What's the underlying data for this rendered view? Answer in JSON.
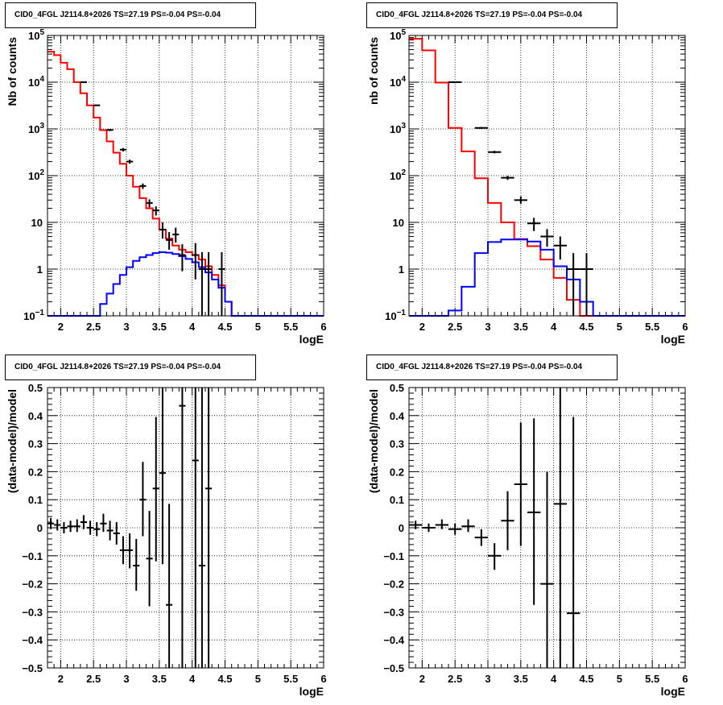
{
  "chart_data": [
    {
      "id": "p1",
      "type": "line",
      "title": "CID0_4FGL J2114.8+2026 TS=27.19 PS=-0.04 PS=-0.04",
      "xlabel": "logE",
      "ylabel": "Nb of counts",
      "xlim": [
        1.8,
        6.0
      ],
      "ylim": [
        0.1,
        100000
      ],
      "yscale": "log",
      "grid": true,
      "colors": {
        "total": "#ff0000",
        "source": "#0000ff",
        "data": "#000000"
      },
      "x_ticks": [
        "2",
        "2.5",
        "3",
        "3.5",
        "4",
        "4.5",
        "5",
        "5.5",
        "6"
      ],
      "x_tick_values": [
        2,
        2.5,
        3,
        3.5,
        4,
        4.5,
        5,
        5.5,
        6
      ],
      "y_ticks": [
        {
          "value": 0.1,
          "base": "10",
          "exp": "−1"
        },
        {
          "value": 1,
          "base": "1",
          "exp": ""
        },
        {
          "value": 10,
          "base": "10",
          "exp": ""
        },
        {
          "value": 100,
          "base": "10",
          "exp": "2"
        },
        {
          "value": 1000,
          "base": "10",
          "exp": "3"
        },
        {
          "value": 10000,
          "base": "10",
          "exp": "4"
        },
        {
          "value": 100000,
          "base": "10",
          "exp": "5"
        }
      ],
      "bin_width": 0.1,
      "bin_edges_start": 1.8,
      "series": [
        {
          "role": "total",
          "values": [
            45000,
            38000,
            26000,
            19000,
            10000,
            5800,
            3200,
            1750,
            940,
            540,
            310,
            180,
            100,
            58,
            33,
            20,
            12,
            7,
            4.5,
            3.2,
            2.6,
            2.3,
            2.0,
            1.6,
            1.15,
            0.75,
            0.45,
            0.2,
            0.1,
            0.1,
            0.1,
            0.1,
            0.1,
            0.1,
            0.1,
            0.1,
            0.1,
            0.1,
            0.1,
            0.1,
            0.1,
            0.1
          ]
        },
        {
          "role": "source",
          "values": [
            0.1,
            0.1,
            0.1,
            0.1,
            0.1,
            0.1,
            0.1,
            0.1,
            0.18,
            0.3,
            0.48,
            0.75,
            1.1,
            1.5,
            1.8,
            2.0,
            2.2,
            2.3,
            2.25,
            2.1,
            1.9,
            1.65,
            1.4,
            1.1,
            0.85,
            0.6,
            0.4,
            0.2,
            0.1,
            0.1,
            0.1,
            0.1,
            0.1,
            0.1,
            0.1,
            0.1,
            0.1,
            0.1,
            0.1,
            0.1,
            0.1,
            0.1
          ]
        }
      ],
      "points": [
        {
          "x": 2.35,
          "y": 10000,
          "lo": 9800,
          "hi": 10200
        },
        {
          "x": 2.55,
          "y": 3200,
          "lo": 3100,
          "hi": 3300
        },
        {
          "x": 2.75,
          "y": 950,
          "lo": 900,
          "hi": 1000
        },
        {
          "x": 2.95,
          "y": 360,
          "lo": 330,
          "hi": 390
        },
        {
          "x": 3.05,
          "y": 200,
          "lo": 180,
          "hi": 220
        },
        {
          "x": 3.25,
          "y": 60,
          "lo": 52,
          "hi": 68
        },
        {
          "x": 3.35,
          "y": 26,
          "lo": 21,
          "hi": 31
        },
        {
          "x": 3.45,
          "y": 18,
          "lo": 14,
          "hi": 22
        },
        {
          "x": 3.55,
          "y": 7,
          "lo": 4.5,
          "hi": 10
        },
        {
          "x": 3.65,
          "y": 4.2,
          "lo": 2.6,
          "hi": 6.2
        },
        {
          "x": 3.75,
          "y": 5.5,
          "lo": 3.7,
          "hi": 7.7
        },
        {
          "x": 3.85,
          "y": 2,
          "lo": 0.9,
          "hi": 3.4
        },
        {
          "x": 4.05,
          "y": 2,
          "lo": 0.6,
          "hi": 3.6
        },
        {
          "x": 4.15,
          "y": 1,
          "lo": 0.1,
          "hi": 2.3
        },
        {
          "x": 4.25,
          "y": 1,
          "lo": 0.1,
          "hi": 2.3
        },
        {
          "x": 4.45,
          "y": 1,
          "lo": 0.1,
          "hi": 2.3
        }
      ]
    },
    {
      "id": "p2",
      "type": "line",
      "title": "CID0_4FGL J2114.8+2026 TS=27.19 PS=-0.04 PS=-0.04",
      "xlabel": "logE",
      "ylabel": "nb of counts",
      "xlim": [
        1.8,
        6.0
      ],
      "ylim": [
        0.1,
        100000
      ],
      "yscale": "log",
      "grid": true,
      "colors": {
        "total": "#ff0000",
        "source": "#0000ff",
        "data": "#000000"
      },
      "x_ticks": [
        "2",
        "2.5",
        "3",
        "3.5",
        "4",
        "4.5",
        "5",
        "5.5",
        "6"
      ],
      "x_tick_values": [
        2,
        2.5,
        3,
        3.5,
        4,
        4.5,
        5,
        5.5,
        6
      ],
      "y_ticks": [
        {
          "value": 0.1,
          "base": "10",
          "exp": "−1"
        },
        {
          "value": 1,
          "base": "1",
          "exp": ""
        },
        {
          "value": 10,
          "base": "10",
          "exp": ""
        },
        {
          "value": 100,
          "base": "10",
          "exp": "2"
        },
        {
          "value": 1000,
          "base": "10",
          "exp": "3"
        },
        {
          "value": 10000,
          "base": "10",
          "exp": "4"
        },
        {
          "value": 100000,
          "base": "10",
          "exp": "5"
        }
      ],
      "bin_width": 0.2,
      "bin_edges_start": 1.8,
      "series": [
        {
          "role": "total",
          "values": [
            85000,
            48000,
            9800,
            1050,
            330,
            88,
            26,
            10,
            4.4,
            3.1,
            1.6,
            0.65,
            0.22,
            0.1,
            0.1,
            0.1,
            0.1,
            0.1,
            0.1,
            0.1,
            0.1
          ]
        },
        {
          "role": "source",
          "values": [
            0.1,
            0.1,
            0.1,
            0.13,
            0.42,
            2.2,
            3.8,
            4.3,
            4.3,
            3.9,
            2.6,
            1.15,
            0.6,
            0.2,
            0.1,
            0.1,
            0.1,
            0.1,
            0.1,
            0.1,
            0.1
          ]
        }
      ],
      "points": [
        {
          "x": 2.5,
          "y": 10000,
          "lo": 9800,
          "hi": 10200
        },
        {
          "x": 2.9,
          "y": 1050,
          "lo": 1000,
          "hi": 1100
        },
        {
          "x": 3.1,
          "y": 320,
          "lo": 300,
          "hi": 340
        },
        {
          "x": 3.3,
          "y": 90,
          "lo": 81,
          "hi": 99
        },
        {
          "x": 3.5,
          "y": 30,
          "lo": 25,
          "hi": 36
        },
        {
          "x": 3.7,
          "y": 9.5,
          "lo": 6.5,
          "hi": 12.5
        },
        {
          "x": 3.9,
          "y": 5,
          "lo": 3.0,
          "hi": 7.2
        },
        {
          "x": 4.1,
          "y": 3.2,
          "lo": 1.6,
          "hi": 5
        },
        {
          "x": 4.3,
          "y": 1,
          "lo": 0.1,
          "hi": 2.2
        },
        {
          "x": 4.5,
          "y": 1,
          "lo": 0.1,
          "hi": 2.2
        }
      ]
    },
    {
      "id": "p3",
      "type": "scatter",
      "title": "CID0_4FGL J2114.8+2026 TS=27.19 PS=-0.04 PS=-0.04",
      "xlabel": "logE",
      "ylabel": "(data-model)/model",
      "xlim": [
        1.8,
        6.0
      ],
      "ylim": [
        -0.5,
        0.5
      ],
      "yscale": "linear",
      "grid": true,
      "colors": {
        "data": "#000000"
      },
      "x_ticks": [
        "2",
        "2.5",
        "3",
        "3.5",
        "4",
        "4.5",
        "5",
        "5.5",
        "6"
      ],
      "x_tick_values": [
        2,
        2.5,
        3,
        3.5,
        4,
        4.5,
        5,
        5.5,
        6
      ],
      "y_ticks": [
        {
          "value": 0.5,
          "label": "0.5"
        },
        {
          "value": 0.4,
          "label": "0.4"
        },
        {
          "value": 0.3,
          "label": "0.3"
        },
        {
          "value": 0.2,
          "label": "0.2"
        },
        {
          "value": 0.1,
          "label": "0.1"
        },
        {
          "value": 0,
          "label": "0"
        },
        {
          "value": -0.1,
          "label": "−0.1"
        },
        {
          "value": -0.2,
          "label": "−0.2"
        },
        {
          "value": -0.3,
          "label": "−0.3"
        },
        {
          "value": -0.4,
          "label": "−0.4"
        },
        {
          "value": -0.5,
          "label": "−0.5"
        }
      ],
      "half_width": 0.05,
      "points": [
        {
          "x": 1.85,
          "y": 0.015,
          "lo": -0.005,
          "hi": 0.035
        },
        {
          "x": 1.95,
          "y": 0.01,
          "lo": -0.01,
          "hi": 0.03
        },
        {
          "x": 2.05,
          "y": 0.0,
          "lo": -0.02,
          "hi": 0.02
        },
        {
          "x": 2.15,
          "y": 0.005,
          "lo": -0.015,
          "hi": 0.025
        },
        {
          "x": 2.25,
          "y": 0.005,
          "lo": -0.015,
          "hi": 0.03
        },
        {
          "x": 2.35,
          "y": 0.02,
          "lo": -0.005,
          "hi": 0.045
        },
        {
          "x": 2.45,
          "y": 0.0,
          "lo": -0.025,
          "hi": 0.025
        },
        {
          "x": 2.55,
          "y": -0.005,
          "lo": -0.03,
          "hi": 0.02
        },
        {
          "x": 2.65,
          "y": 0.015,
          "lo": -0.015,
          "hi": 0.05
        },
        {
          "x": 2.75,
          "y": -0.01,
          "lo": -0.045,
          "hi": 0.025
        },
        {
          "x": 2.85,
          "y": -0.02,
          "lo": -0.06,
          "hi": 0.02
        },
        {
          "x": 2.95,
          "y": -0.08,
          "lo": -0.13,
          "hi": -0.03
        },
        {
          "x": 3.05,
          "y": -0.08,
          "lo": -0.145,
          "hi": -0.02
        },
        {
          "x": 3.15,
          "y": -0.135,
          "lo": -0.225,
          "hi": -0.04
        },
        {
          "x": 3.25,
          "y": 0.1,
          "lo": -0.03,
          "hi": 0.235
        },
        {
          "x": 3.35,
          "y": -0.11,
          "lo": -0.28,
          "hi": 0.06
        },
        {
          "x": 3.45,
          "y": 0.14,
          "lo": -0.12,
          "hi": 0.395
        },
        {
          "x": 3.55,
          "y": 0.195,
          "lo": -0.13,
          "hi": 0.5
        },
        {
          "x": 3.65,
          "y": -0.275,
          "lo": -0.5,
          "hi": 0.085
        },
        {
          "x": 3.85,
          "y": 0.435,
          "lo": -0.5,
          "hi": 0.5
        },
        {
          "x": 4.05,
          "y": 0.24,
          "lo": -0.5,
          "hi": 0.5
        },
        {
          "x": 4.15,
          "y": -0.135,
          "lo": -0.5,
          "hi": 0.5
        },
        {
          "x": 4.25,
          "y": 0.14,
          "lo": -0.5,
          "hi": 0.5
        }
      ]
    },
    {
      "id": "p4",
      "type": "scatter",
      "title": "CID0_4FGL J2114.8+2026 TS=27.19 PS=-0.04 PS=-0.04",
      "xlabel": "logE",
      "ylabel": "(data-model)/model",
      "xlim": [
        1.8,
        6.0
      ],
      "ylim": [
        -0.5,
        0.5
      ],
      "yscale": "linear",
      "grid": true,
      "colors": {
        "data": "#000000"
      },
      "x_ticks": [
        "2",
        "2.5",
        "3",
        "3.5",
        "4",
        "4.5",
        "5",
        "5.5",
        "6"
      ],
      "x_tick_values": [
        2,
        2.5,
        3,
        3.5,
        4,
        4.5,
        5,
        5.5,
        6
      ],
      "y_ticks": [
        {
          "value": 0.5,
          "label": "0.5"
        },
        {
          "value": 0.4,
          "label": "0.4"
        },
        {
          "value": 0.3,
          "label": "0.3"
        },
        {
          "value": 0.2,
          "label": "0.2"
        },
        {
          "value": 0.1,
          "label": "0.1"
        },
        {
          "value": 0,
          "label": "0"
        },
        {
          "value": -0.1,
          "label": "−0.1"
        },
        {
          "value": -0.2,
          "label": "−0.2"
        },
        {
          "value": -0.3,
          "label": "−0.3"
        },
        {
          "value": -0.4,
          "label": "−0.4"
        },
        {
          "value": -0.5,
          "label": "−0.5"
        }
      ],
      "half_width": 0.1,
      "points": [
        {
          "x": 1.9,
          "y": 0.01,
          "lo": -0.005,
          "hi": 0.025
        },
        {
          "x": 2.1,
          "y": 0.0,
          "lo": -0.015,
          "hi": 0.015
        },
        {
          "x": 2.3,
          "y": 0.01,
          "lo": -0.005,
          "hi": 0.03
        },
        {
          "x": 2.5,
          "y": -0.005,
          "lo": -0.025,
          "hi": 0.015
        },
        {
          "x": 2.7,
          "y": 0.005,
          "lo": -0.015,
          "hi": 0.03
        },
        {
          "x": 2.9,
          "y": -0.035,
          "lo": -0.065,
          "hi": -0.005
        },
        {
          "x": 3.1,
          "y": -0.1,
          "lo": -0.15,
          "hi": -0.055
        },
        {
          "x": 3.3,
          "y": 0.025,
          "lo": -0.08,
          "hi": 0.13
        },
        {
          "x": 3.5,
          "y": 0.155,
          "lo": -0.065,
          "hi": 0.375
        },
        {
          "x": 3.7,
          "y": 0.055,
          "lo": -0.275,
          "hi": 0.39
        },
        {
          "x": 3.9,
          "y": -0.2,
          "lo": -0.5,
          "hi": 0.2
        },
        {
          "x": 4.1,
          "y": 0.085,
          "lo": -0.5,
          "hi": 0.5
        },
        {
          "x": 4.3,
          "y": -0.305,
          "lo": -0.5,
          "hi": 0.395
        }
      ]
    }
  ]
}
